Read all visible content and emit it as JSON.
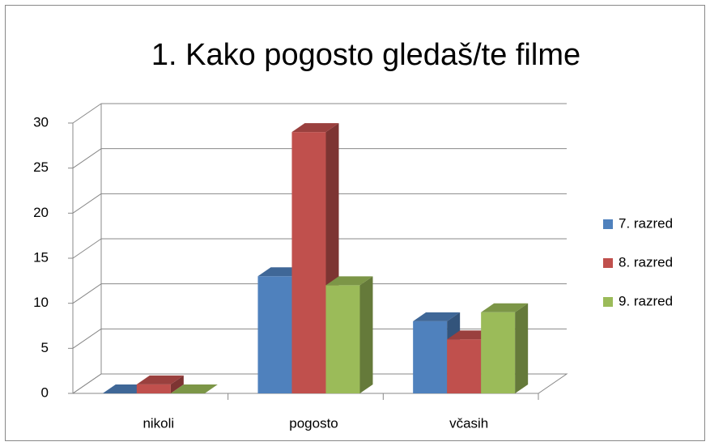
{
  "chart_data": {
    "type": "bar3d",
    "title": "1. Kako pogosto gledaš/te filme",
    "categories": [
      "nikoli",
      "pogosto",
      "včasih"
    ],
    "series": [
      {
        "name": "7. razred",
        "color": "#4f81bd",
        "values": [
          0,
          13,
          8
        ]
      },
      {
        "name": "8. razred",
        "color": "#c0504d",
        "values": [
          1,
          29,
          6
        ]
      },
      {
        "name": "9. razred",
        "color": "#9bbb59",
        "values": [
          0,
          12,
          9
        ]
      }
    ],
    "ylim": [
      0,
      30
    ],
    "yticks": [
      0,
      5,
      10,
      15,
      20,
      25,
      30
    ],
    "grid": true,
    "legend": "right"
  }
}
